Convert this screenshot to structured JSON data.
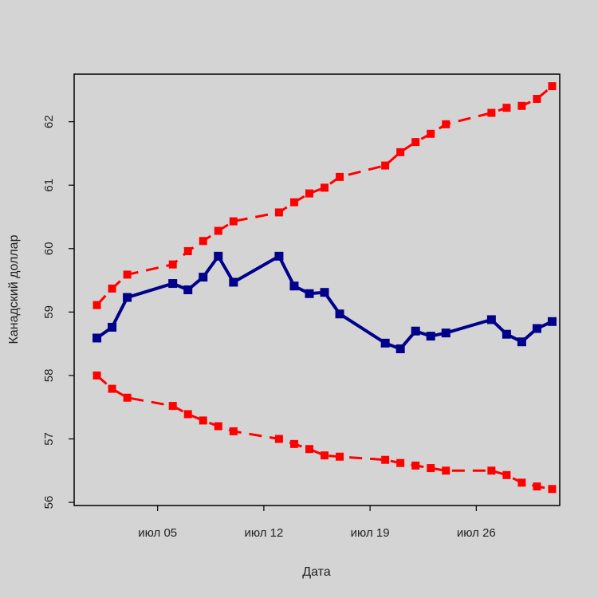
{
  "chart_data": {
    "type": "line",
    "title": "",
    "xlabel": "Дата",
    "ylabel": "Канадский доллар",
    "x_ticks": [
      {
        "label": "июл 05",
        "day": 5
      },
      {
        "label": "июл 12",
        "day": 12
      },
      {
        "label": "июл 19",
        "day": 19
      },
      {
        "label": "июл 26",
        "day": 26
      }
    ],
    "y_ticks": [
      56,
      57,
      58,
      59,
      60,
      61,
      62
    ],
    "xlim": [
      -0.5,
      31.5
    ],
    "ylim": [
      55.95,
      62.75
    ],
    "x": [
      1,
      2,
      3,
      6,
      7,
      8,
      9,
      10,
      13,
      14,
      15,
      16,
      17,
      20,
      21,
      22,
      23,
      24,
      27,
      28,
      29,
      30,
      31
    ],
    "series": [
      {
        "role": "upper",
        "color": "#ff0000",
        "style": "dashed",
        "marker": "square",
        "values": [
          59.11,
          59.37,
          59.59,
          59.75,
          59.96,
          60.12,
          60.28,
          60.43,
          60.57,
          60.73,
          60.87,
          60.96,
          61.13,
          61.31,
          61.52,
          61.68,
          61.81,
          61.96,
          62.14,
          62.22,
          62.25,
          62.36,
          62.56
        ]
      },
      {
        "role": "actual",
        "color": "#00008b",
        "style": "solid",
        "marker": "square",
        "values": [
          58.59,
          58.76,
          59.23,
          59.45,
          59.35,
          59.55,
          59.88,
          59.47,
          59.88,
          59.41,
          59.29,
          59.31,
          58.97,
          58.51,
          58.42,
          58.7,
          58.62,
          58.67,
          58.88,
          58.65,
          58.53,
          58.74,
          58.85
        ]
      },
      {
        "role": "lower",
        "color": "#ff0000",
        "style": "dashed",
        "marker": "square",
        "values": [
          58.0,
          57.79,
          57.65,
          57.52,
          57.39,
          57.29,
          57.2,
          57.12,
          57.0,
          56.92,
          56.84,
          56.74,
          56.72,
          56.67,
          56.62,
          56.58,
          56.54,
          56.5,
          56.5,
          56.43,
          56.31,
          56.25,
          56.21
        ]
      }
    ],
    "grid": false,
    "legend": "none"
  }
}
